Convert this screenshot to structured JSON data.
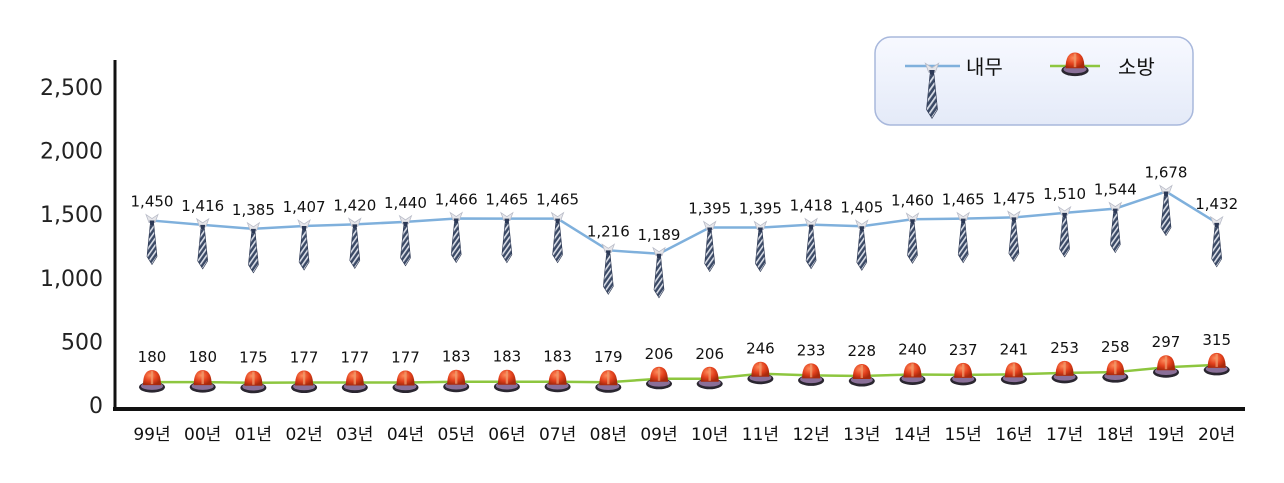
{
  "chart_data": {
    "type": "line",
    "categories": [
      "99년",
      "00년",
      "01년",
      "02년",
      "03년",
      "04년",
      "05년",
      "06년",
      "07년",
      "08년",
      "09년",
      "10년",
      "11년",
      "12년",
      "13년",
      "14년",
      "15년",
      "16년",
      "17년",
      "18년",
      "19년",
      "20년"
    ],
    "series": [
      {
        "name": "내무",
        "marker": "necktie-icon",
        "color": "#7fb0dc",
        "values": [
          1450,
          1416,
          1385,
          1407,
          1420,
          1440,
          1466,
          1465,
          1465,
          1216,
          1189,
          1395,
          1395,
          1418,
          1405,
          1460,
          1465,
          1475,
          1510,
          1544,
          1678,
          1432
        ],
        "labels": [
          "1,450",
          "1,416",
          "1,385",
          "1,407",
          "1,420",
          "1,440",
          "1,466",
          "1,465",
          "1,465",
          "1,216",
          "1,189",
          "1,395",
          "1,395",
          "1,418",
          "1,405",
          "1,460",
          "1,465",
          "1,475",
          "1,510",
          "1,544",
          "1,678",
          "1,432"
        ]
      },
      {
        "name": "소방",
        "marker": "fire-helmet-icon",
        "color": "#8dc63f",
        "values": [
          180,
          180,
          175,
          177,
          177,
          177,
          183,
          183,
          183,
          179,
          206,
          206,
          246,
          233,
          228,
          240,
          237,
          241,
          253,
          258,
          297,
          315
        ],
        "labels": [
          "180",
          "180",
          "175",
          "177",
          "177",
          "177",
          "183",
          "183",
          "183",
          "179",
          "206",
          "206",
          "246",
          "233",
          "228",
          "240",
          "237",
          "241",
          "253",
          "258",
          "297",
          "315"
        ]
      }
    ],
    "y_ticks": [
      "0",
      "500",
      "1,000",
      "1,500",
      "2,000",
      "2,500"
    ],
    "ylim": [
      0,
      2500
    ],
    "legend": "top-right",
    "grid": false
  }
}
